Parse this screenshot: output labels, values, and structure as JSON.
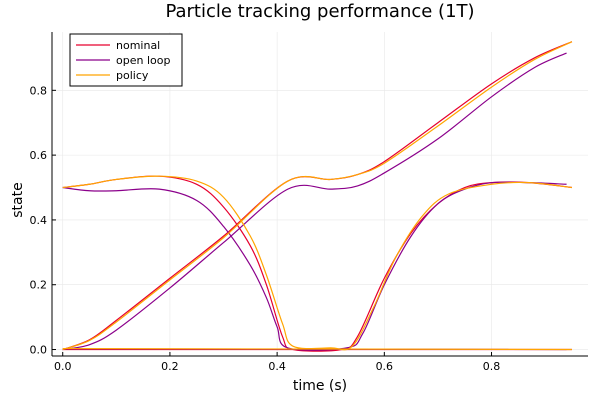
{
  "chart_data": {
    "type": "line",
    "title": "Particle tracking performance (1T)",
    "xlabel": "time (s)",
    "ylabel": "state",
    "xlim": [
      -0.02,
      0.98
    ],
    "ylim": [
      -0.02,
      0.98
    ],
    "xticks": [
      0.0,
      0.2,
      0.4,
      0.6,
      0.8
    ],
    "xtick_labels": [
      "0.0",
      "0.2",
      "0.4",
      "0.6",
      "0.8"
    ],
    "yticks": [
      0.0,
      0.2,
      0.4,
      0.6,
      0.8
    ],
    "ytick_labels": [
      "0.0",
      "0.2",
      "0.4",
      "0.6",
      "0.8"
    ],
    "grid": true,
    "legend_position": "top-left",
    "series": [
      {
        "name": "nominal",
        "color": "#e6002e",
        "curves": [
          [
            [
              0.0,
              0.0
            ],
            [
              0.05,
              0.03
            ],
            [
              0.1,
              0.09
            ],
            [
              0.2,
              0.22
            ],
            [
              0.3,
              0.35
            ],
            [
              0.42,
              0.52
            ],
            [
              0.5,
              0.525
            ],
            [
              0.55,
              0.54
            ],
            [
              0.6,
              0.58
            ],
            [
              0.7,
              0.7
            ],
            [
              0.8,
              0.82
            ],
            [
              0.88,
              0.9
            ],
            [
              0.95,
              0.95
            ]
          ],
          [
            [
              0.0,
              0.5
            ],
            [
              0.05,
              0.51
            ],
            [
              0.1,
              0.525
            ],
            [
              0.18,
              0.535
            ],
            [
              0.25,
              0.51
            ],
            [
              0.3,
              0.44
            ],
            [
              0.35,
              0.32
            ],
            [
              0.38,
              0.2
            ],
            [
              0.41,
              0.04
            ],
            [
              0.43,
              0.0
            ],
            [
              0.52,
              0.0
            ],
            [
              0.55,
              0.04
            ],
            [
              0.6,
              0.22
            ],
            [
              0.65,
              0.36
            ],
            [
              0.7,
              0.45
            ],
            [
              0.75,
              0.5
            ],
            [
              0.8,
              0.515
            ],
            [
              0.87,
              0.515
            ],
            [
              0.95,
              0.5
            ]
          ],
          [
            [
              0.0,
              0.0
            ],
            [
              0.95,
              0.0
            ]
          ]
        ]
      },
      {
        "name": "open loop",
        "color": "#8b008b",
        "curves": [
          [
            [
              0.0,
              0.0
            ],
            [
              0.05,
              0.015
            ],
            [
              0.1,
              0.06
            ],
            [
              0.2,
              0.19
            ],
            [
              0.3,
              0.33
            ],
            [
              0.42,
              0.495
            ],
            [
              0.5,
              0.495
            ],
            [
              0.55,
              0.505
            ],
            [
              0.6,
              0.545
            ],
            [
              0.7,
              0.65
            ],
            [
              0.8,
              0.78
            ],
            [
              0.88,
              0.87
            ],
            [
              0.94,
              0.915
            ]
          ],
          [
            [
              0.0,
              0.5
            ],
            [
              0.05,
              0.49
            ],
            [
              0.1,
              0.49
            ],
            [
              0.18,
              0.495
            ],
            [
              0.25,
              0.46
            ],
            [
              0.3,
              0.38
            ],
            [
              0.35,
              0.26
            ],
            [
              0.38,
              0.16
            ],
            [
              0.4,
              0.07
            ],
            [
              0.42,
              0.005
            ],
            [
              0.53,
              0.005
            ],
            [
              0.56,
              0.05
            ],
            [
              0.6,
              0.2
            ],
            [
              0.65,
              0.35
            ],
            [
              0.7,
              0.45
            ],
            [
              0.75,
              0.495
            ],
            [
              0.8,
              0.515
            ],
            [
              0.87,
              0.515
            ],
            [
              0.94,
              0.51
            ]
          ],
          [
            [
              0.0,
              0.002
            ],
            [
              0.94,
              0.0
            ]
          ]
        ]
      },
      {
        "name": "policy",
        "color": "#ffa500",
        "curves": [
          [
            [
              0.0,
              0.0
            ],
            [
              0.05,
              0.028
            ],
            [
              0.1,
              0.085
            ],
            [
              0.2,
              0.215
            ],
            [
              0.3,
              0.345
            ],
            [
              0.42,
              0.52
            ],
            [
              0.5,
              0.525
            ],
            [
              0.55,
              0.54
            ],
            [
              0.6,
              0.575
            ],
            [
              0.7,
              0.69
            ],
            [
              0.8,
              0.81
            ],
            [
              0.88,
              0.895
            ],
            [
              0.95,
              0.95
            ]
          ],
          [
            [
              0.0,
              0.5
            ],
            [
              0.05,
              0.51
            ],
            [
              0.1,
              0.525
            ],
            [
              0.18,
              0.535
            ],
            [
              0.25,
              0.52
            ],
            [
              0.3,
              0.47
            ],
            [
              0.35,
              0.35
            ],
            [
              0.38,
              0.23
            ],
            [
              0.41,
              0.08
            ],
            [
              0.43,
              0.01
            ],
            [
              0.5,
              0.005
            ],
            [
              0.54,
              0.01
            ],
            [
              0.58,
              0.13
            ],
            [
              0.62,
              0.28
            ],
            [
              0.67,
              0.41
            ],
            [
              0.72,
              0.48
            ],
            [
              0.8,
              0.51
            ],
            [
              0.87,
              0.515
            ],
            [
              0.95,
              0.5
            ]
          ],
          [
            [
              0.0,
              0.003
            ],
            [
              0.95,
              0.0
            ]
          ]
        ]
      }
    ]
  }
}
